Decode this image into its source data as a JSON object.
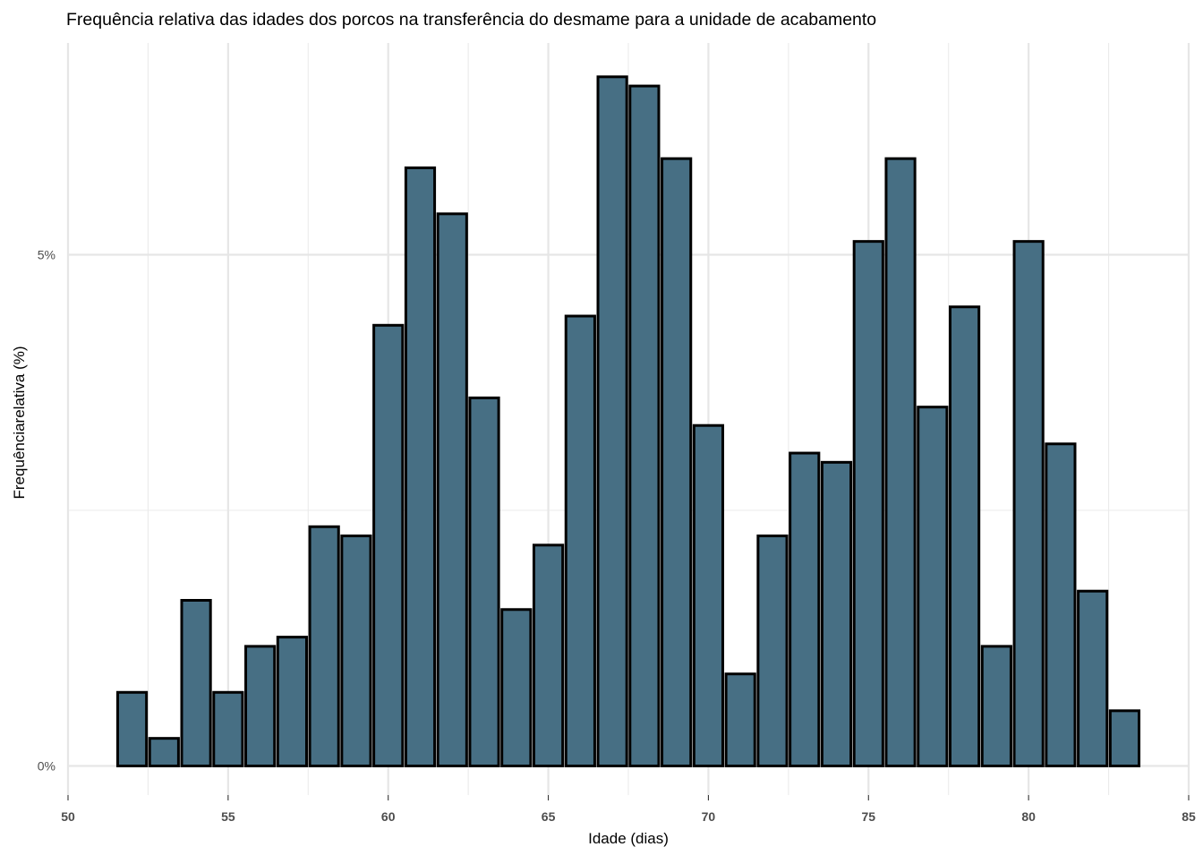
{
  "chart_data": {
    "type": "bar",
    "title": "Frequência relativa das idades dos porcos na transferência do desmame para a unidade de acabamento",
    "xlabel": "Idade (dias)",
    "ylabel": "Frequênciarelativa (%)",
    "x": [
      52,
      53,
      54,
      55,
      56,
      57,
      58,
      59,
      60,
      61,
      62,
      63,
      64,
      65,
      66,
      67,
      68,
      69,
      70,
      71,
      72,
      73,
      74,
      75,
      76,
      77,
      78,
      79,
      80,
      81,
      82,
      83
    ],
    "values": [
      0.72,
      0.27,
      1.62,
      0.72,
      1.17,
      1.26,
      2.34,
      2.25,
      4.31,
      5.85,
      5.4,
      3.6,
      1.53,
      2.16,
      4.4,
      6.74,
      6.65,
      5.94,
      3.33,
      0.9,
      2.25,
      3.06,
      2.97,
      5.13,
      5.94,
      3.51,
      4.49,
      1.17,
      5.13,
      3.15,
      1.71,
      0.54
    ],
    "xlim": [
      50,
      85
    ],
    "ylim": [
      -0.3,
      7.4
    ],
    "x_ticks": [
      50,
      55,
      60,
      65,
      70,
      75,
      80,
      85
    ],
    "x_tick_labels": [
      "50",
      "55",
      "60",
      "65",
      "70",
      "75",
      "80",
      "85"
    ],
    "y_ticks": [
      0,
      5
    ],
    "y_tick_labels": [
      "0%",
      "5%"
    ],
    "y_minor_gridlines": [
      2.5
    ],
    "x_minor_gridlines": [
      52.5,
      57.5,
      62.5,
      67.5,
      72.5,
      77.5,
      82.5
    ],
    "grid": true,
    "bar_fill": "#476f84",
    "bar_outline": "#000000",
    "background": "#ffffff",
    "legend": "none"
  }
}
